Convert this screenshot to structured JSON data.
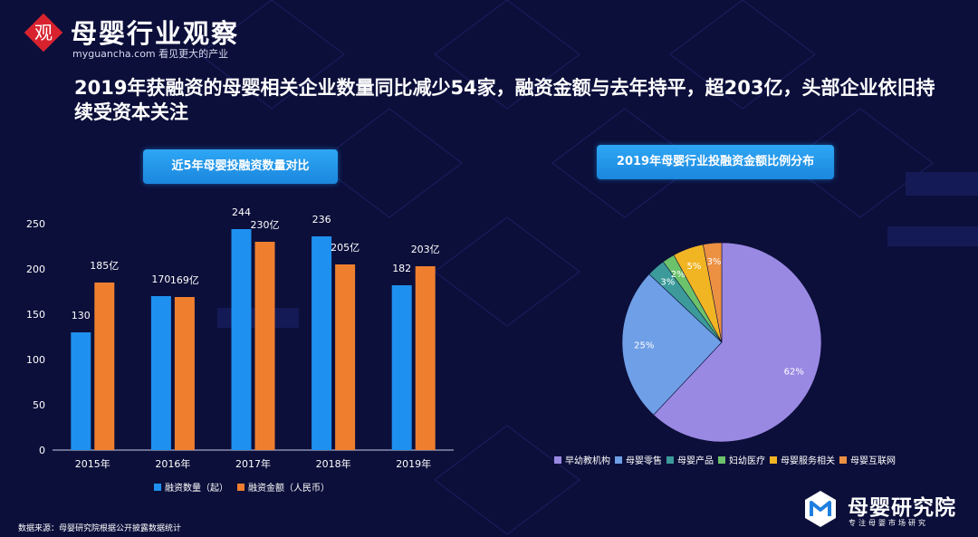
{
  "header": {
    "logo_char": "观",
    "logo_name": "母婴行业观察",
    "logo_url": "myguancha.com",
    "logo_tagline": "看见更大的产业"
  },
  "headline": "2019年获融资的母婴相关企业数量同比减少54家，融资金额与去年持平，超203亿，头部企业依旧持续受资本关注",
  "colors": {
    "background": "#0c0f3a",
    "count_bar": "#1e90f0",
    "amount_bar": "#ef7f2e",
    "title_button": "#1f95e8"
  },
  "chart_data": [
    {
      "type": "bar",
      "title": "近5年母婴投融资数量对比",
      "categories": [
        "2015年",
        "2016年",
        "2017年",
        "2018年",
        "2019年"
      ],
      "series": [
        {
          "name": "融资数量（起）",
          "values": [
            130,
            170,
            244,
            236,
            182
          ],
          "labels": [
            "130",
            "170",
            "244",
            "236",
            "182"
          ],
          "color": "#1e90f0"
        },
        {
          "name": "融资金额（人民币）",
          "values": [
            185,
            169,
            230,
            205,
            203
          ],
          "labels": [
            "185亿",
            "169亿",
            "230亿",
            "205亿",
            "203亿"
          ],
          "color": "#ef7f2e"
        }
      ],
      "ylim": [
        0,
        250
      ],
      "yticks": [
        0,
        50,
        100,
        150,
        200,
        250
      ],
      "grid": false,
      "legend_position": "bottom"
    },
    {
      "type": "pie",
      "title": "2019年母婴行业投融资金额比例分布",
      "slices": [
        {
          "label": "早幼教机构",
          "value": 62,
          "text": "62%",
          "color": "#9a89e3"
        },
        {
          "label": "母婴零售",
          "value": 25,
          "text": "25%",
          "color": "#6f9fe6"
        },
        {
          "label": "母婴产品",
          "value": 3,
          "text": "3%",
          "color": "#3c9a9a"
        },
        {
          "label": "妇幼医疗",
          "value": 2,
          "text": "2%",
          "color": "#6cc26b"
        },
        {
          "label": "母婴服务相关",
          "value": 5,
          "text": "5%",
          "color": "#f1b423"
        },
        {
          "label": "母婴互联网",
          "value": 3,
          "text": "3%",
          "color": "#ec9142"
        }
      ],
      "legend_position": "bottom"
    }
  ],
  "footer": {
    "source": "数据来源：母婴研究院根据公开披露数据统计",
    "brand_name": "母婴研究院",
    "brand_slogan": "专注母婴市场研究"
  }
}
